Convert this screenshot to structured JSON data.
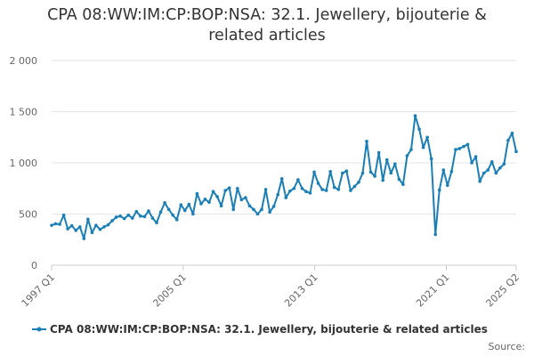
{
  "chart_data": {
    "type": "line",
    "title_lines": [
      "CPA 08:WW:IM:CP:BOP:NSA: 32.1. Jewellery, bijouterie &",
      "related articles"
    ],
    "xlabel": "",
    "ylabel": "",
    "x_start": "1997 Q1",
    "x_end": "2025 Q2",
    "x_ticks": [
      "1997 Q1",
      "2005 Q1",
      "2013 Q1",
      "2021 Q1",
      "2025 Q2"
    ],
    "y_ticks": [
      0,
      500,
      1000,
      1500,
      2000
    ],
    "y_tick_labels": [
      "0",
      "500",
      "1 000",
      "1 500",
      "2 000"
    ],
    "ylim": [
      0,
      2000
    ],
    "grid": "horizontal",
    "legend_position": "bottom",
    "series": [
      {
        "name": "CPA 08:WW:IM:CP:BOP:NSA: 32.1. Jewellery, bijouterie & related articles",
        "color": "#1a7fb6",
        "values": [
          390,
          405,
          400,
          490,
          355,
          385,
          340,
          375,
          260,
          450,
          320,
          390,
          350,
          375,
          395,
          435,
          470,
          480,
          455,
          490,
          460,
          525,
          480,
          475,
          530,
          460,
          415,
          520,
          610,
          545,
          490,
          445,
          590,
          535,
          595,
          500,
          700,
          600,
          645,
          615,
          720,
          670,
          580,
          730,
          755,
          545,
          750,
          640,
          660,
          580,
          545,
          500,
          545,
          740,
          520,
          575,
          690,
          845,
          660,
          725,
          750,
          835,
          750,
          720,
          705,
          910,
          800,
          740,
          730,
          915,
          760,
          740,
          900,
          920,
          730,
          770,
          810,
          900,
          1210,
          910,
          870,
          1100,
          830,
          1030,
          900,
          990,
          840,
          790,
          1070,
          1130,
          1460,
          1330,
          1150,
          1250,
          1040,
          300,
          735,
          930,
          780,
          915,
          1130,
          1140,
          1160,
          1180,
          1000,
          1060,
          820,
          900,
          930,
          1010,
          900,
          950,
          990,
          1220,
          1290,
          1110
        ]
      }
    ],
    "source_label": "Source:"
  }
}
